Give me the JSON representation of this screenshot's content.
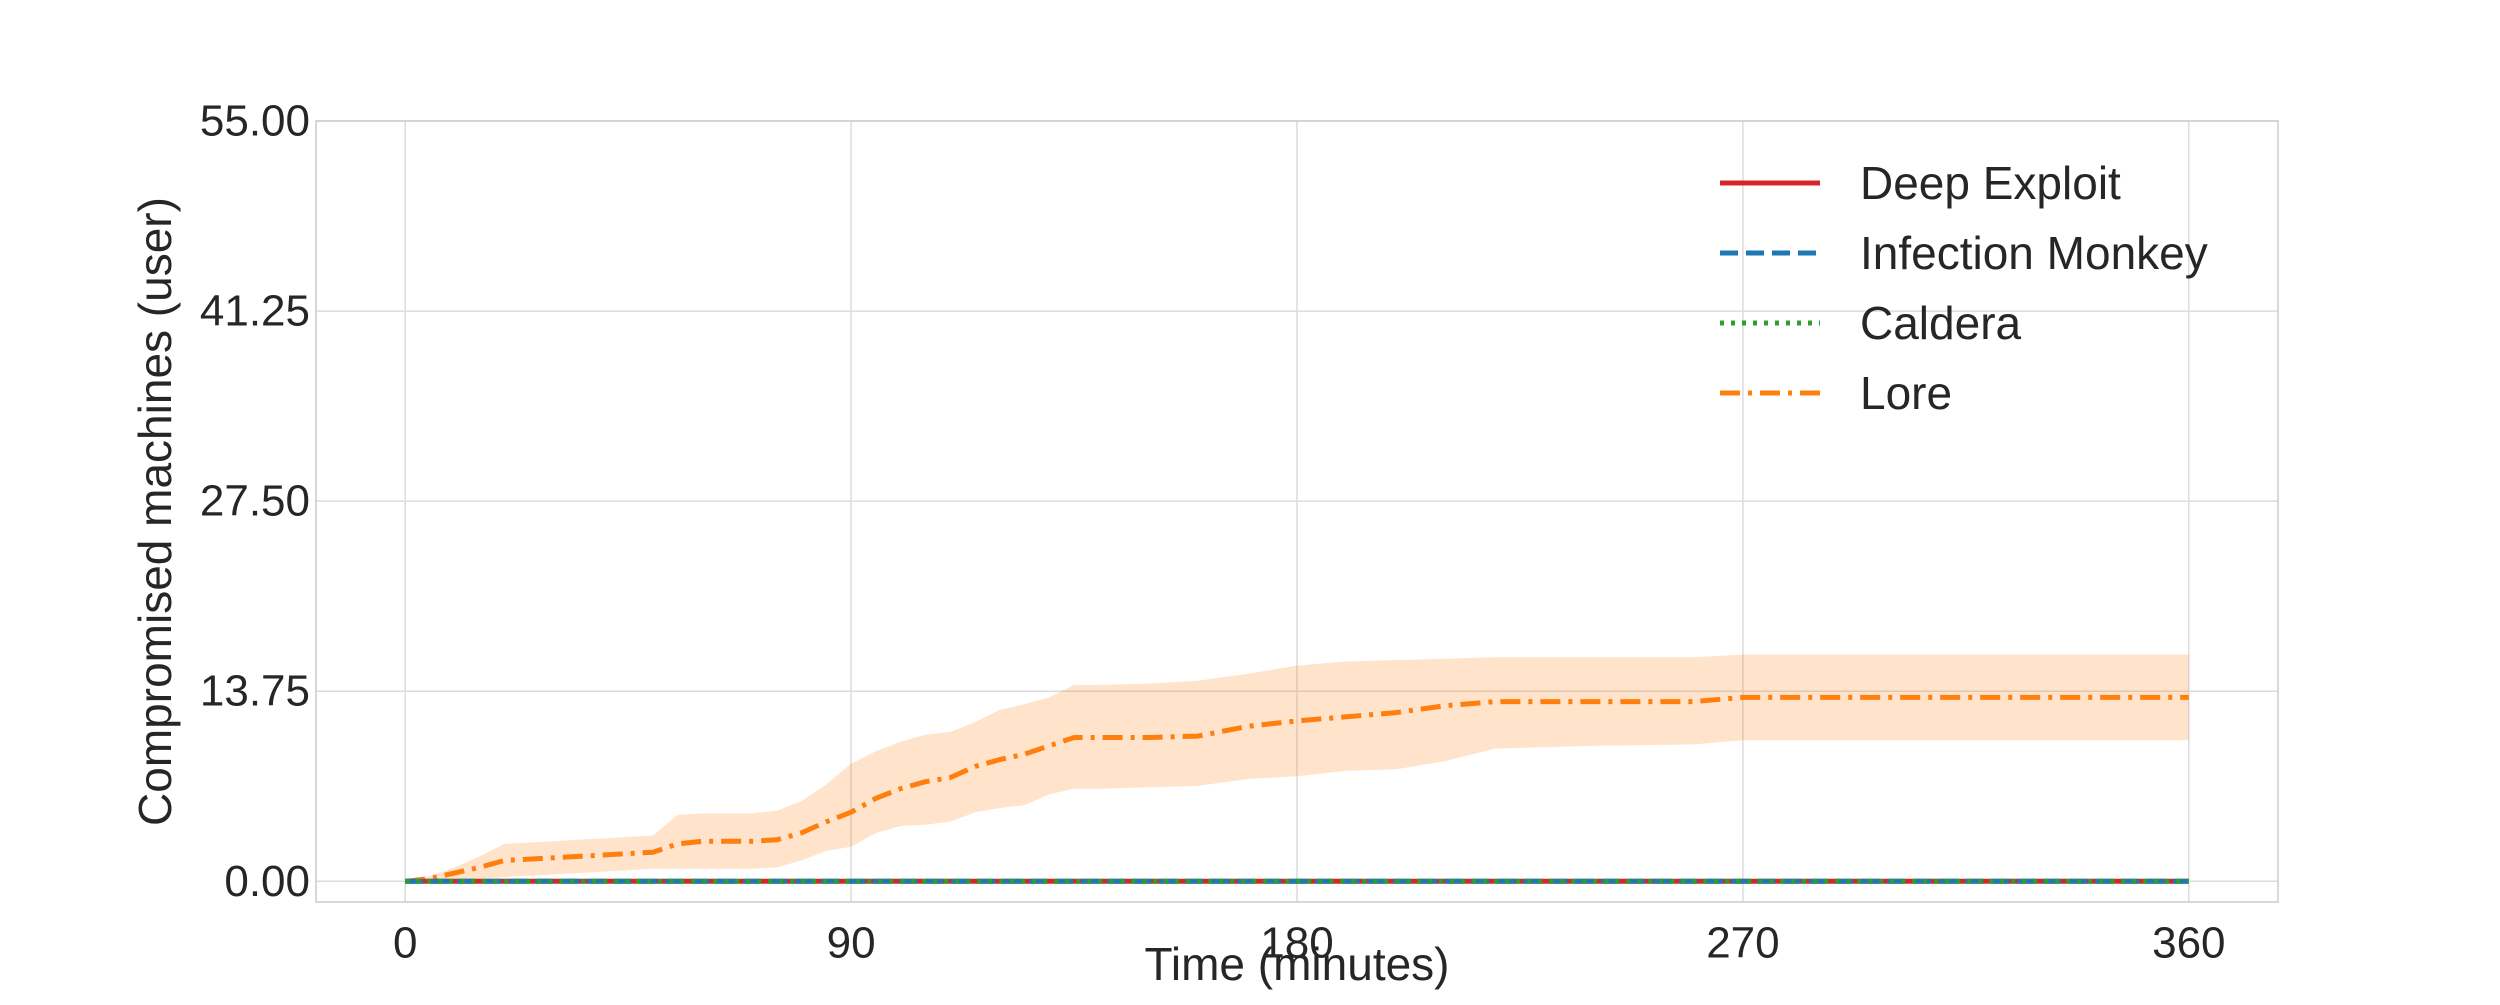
{
  "chart_data": {
    "type": "line",
    "xlabel": "Time (minutes)",
    "ylabel": "Compromised machines (user)",
    "xlim": [
      -18,
      378
    ],
    "ylim": [
      -1.5,
      55
    ],
    "x_ticks": [
      0,
      90,
      180,
      270,
      360
    ],
    "x_tick_labels": [
      "0",
      "90",
      "180",
      "270",
      "360"
    ],
    "y_ticks": [
      0,
      13.75,
      27.5,
      41.25,
      55
    ],
    "y_tick_labels": [
      "0.00",
      "13.75",
      "27.50",
      "41.25",
      "55.00"
    ],
    "grid": true,
    "legend_position": "top-right",
    "series": [
      {
        "name": "Deep Exploit",
        "color": "#d62728",
        "dash": "solid",
        "x": [
          0,
          360
        ],
        "y": [
          0,
          0
        ]
      },
      {
        "name": "Infection Monkey",
        "color": "#1f77b4",
        "dash": "dashed",
        "x": [
          0,
          360
        ],
        "y": [
          0,
          0
        ]
      },
      {
        "name": "Caldera",
        "color": "#2ca02c",
        "dash": "dotted",
        "x": [
          0,
          360
        ],
        "y": [
          0,
          0
        ]
      },
      {
        "name": "Lore",
        "color": "#ff7f0e",
        "dash": "dashdot",
        "x": [
          0,
          5,
          10,
          15,
          20,
          25,
          30,
          35,
          40,
          45,
          50,
          55,
          60,
          65,
          70,
          75,
          80,
          85,
          90,
          95,
          100,
          105,
          110,
          115,
          120,
          125,
          130,
          135,
          140,
          150,
          160,
          170,
          180,
          190,
          200,
          210,
          220,
          240,
          260,
          270,
          290,
          310,
          330,
          360
        ],
        "y": [
          0,
          0.2,
          0.6,
          1.0,
          1.5,
          1.6,
          1.7,
          1.8,
          1.9,
          2.0,
          2.1,
          2.7,
          2.9,
          2.9,
          2.9,
          3.0,
          3.5,
          4.3,
          5.0,
          6.0,
          6.7,
          7.2,
          7.5,
          8.3,
          8.8,
          9.2,
          9.8,
          10.4,
          10.4,
          10.4,
          10.5,
          11.2,
          11.6,
          11.9,
          12.2,
          12.7,
          13.0,
          13.0,
          13.0,
          13.3,
          13.3,
          13.3,
          13.3,
          13.3
        ],
        "band_upper": [
          0,
          0.4,
          1.0,
          1.8,
          2.7,
          2.8,
          2.9,
          3.0,
          3.1,
          3.2,
          3.3,
          4.8,
          4.9,
          4.9,
          4.9,
          5.1,
          5.8,
          7.0,
          8.5,
          9.4,
          10.1,
          10.6,
          10.8,
          11.5,
          12.4,
          12.8,
          13.3,
          14.2,
          14.2,
          14.3,
          14.5,
          15.0,
          15.6,
          15.9,
          16.0,
          16.1,
          16.2,
          16.2,
          16.2,
          16.4,
          16.4,
          16.4,
          16.4,
          16.4
        ],
        "band_lower": [
          0,
          0,
          0.1,
          0.2,
          0.3,
          0.4,
          0.5,
          0.6,
          0.7,
          0.8,
          0.9,
          0.9,
          0.9,
          0.9,
          0.9,
          1.0,
          1.5,
          2.2,
          2.5,
          3.5,
          4.0,
          4.1,
          4.3,
          5.0,
          5.3,
          5.5,
          6.3,
          6.7,
          6.7,
          6.8,
          6.9,
          7.4,
          7.6,
          8.0,
          8.1,
          8.7,
          9.6,
          9.8,
          9.9,
          10.2,
          10.2,
          10.2,
          10.2,
          10.2
        ]
      }
    ]
  }
}
